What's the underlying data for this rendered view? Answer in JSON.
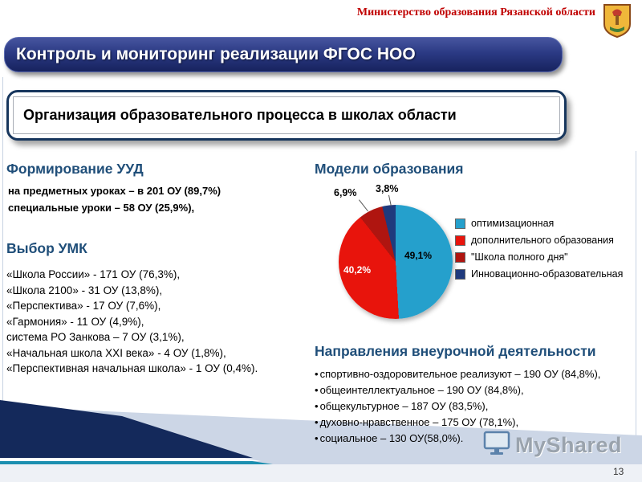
{
  "slide": {
    "ministry": "Министерство образования Рязанской области",
    "page_number": "13",
    "watermark": "MyShared"
  },
  "banner": {
    "title": "Контроль и мониторинг реализации ФГОС НОО"
  },
  "subtitle": {
    "text": "Организация образовательного процесса в школах области"
  },
  "uud": {
    "heading": "Формирование УУД",
    "lines": [
      "на предметных уроках – в 201 ОУ (89,7%)",
      "специальные уроки – 58 ОУ (25,9%),"
    ]
  },
  "umk": {
    "heading": "Выбор УМК",
    "items": [
      "«Школа России» - 171 ОУ (76,3%),",
      "«Школа 2100» - 31 ОУ (13,8%),",
      "«Перспектива» - 17 ОУ (7,6%),",
      "«Гармония» - 11 ОУ (4,9%),",
      "система РО Занкова – 7 ОУ (3,1%),",
      "«Начальная школа XXI века» - 4 ОУ (1,8%),",
      "«Перспективная начальная школа» -  1 ОУ (0,4%)."
    ]
  },
  "models": {
    "heading": "Модели образования"
  },
  "directions": {
    "heading": "Направления внеурочной деятельности",
    "items": [
      "спортивно-оздоровительное реализуют – 190 ОУ (84,8%),",
      "общеинтеллектуальное – 190 ОУ (84,8%),",
      "общекультурное – 187 ОУ (83,5%),",
      "духовно-нравственное – 175 ОУ (78,1%),",
      "социальное – 130 ОУ(58,0%)."
    ]
  },
  "chart_data": {
    "type": "pie",
    "title": "Модели образования",
    "legend_position": "right",
    "slices": [
      {
        "label": "оптимизационная",
        "value": 49.1,
        "display": "49,1%",
        "color": "#25A0CC"
      },
      {
        "label": "дополнительного образования",
        "value": 40.2,
        "display": "40,2%",
        "color": "#E8140C"
      },
      {
        "label": "\"Школа полного дня\"",
        "value": 6.9,
        "display": "6,9%",
        "color": "#AF1510"
      },
      {
        "label": "Инновационно-образовательная",
        "value": 3.8,
        "display": "3,8%",
        "color": "#1F3A7D"
      }
    ]
  }
}
